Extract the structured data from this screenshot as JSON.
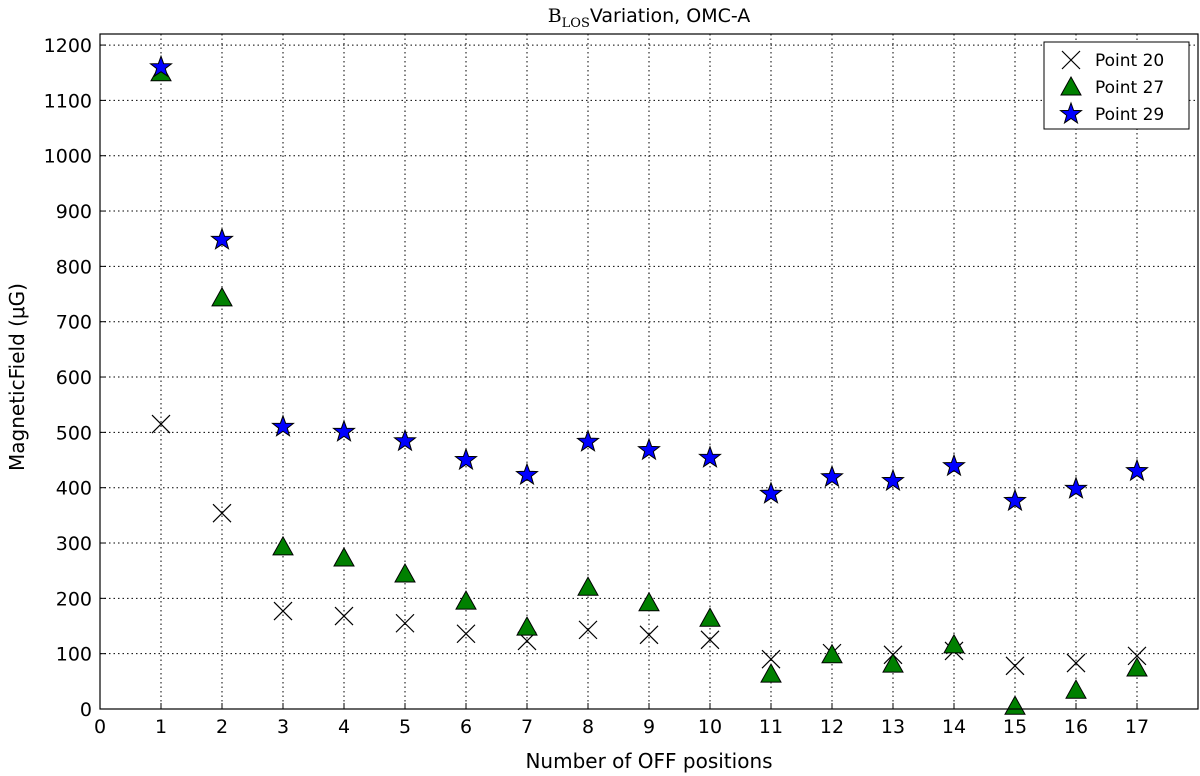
{
  "chart_data": {
    "type": "scatter",
    "title": "B",
    "title_subscript": "LOS",
    "title_rest": "Variation, OMC-A",
    "xlabel": "Number of OFF positions",
    "ylabel": "MagneticField (μG)",
    "xlim": [
      0,
      18
    ],
    "ylim": [
      0,
      1220
    ],
    "xticks": [
      0,
      1,
      2,
      3,
      4,
      5,
      6,
      7,
      8,
      9,
      10,
      11,
      12,
      13,
      14,
      15,
      16,
      17
    ],
    "yticks": [
      0,
      100,
      200,
      300,
      400,
      500,
      600,
      700,
      800,
      900,
      1000,
      1100,
      1200
    ],
    "grid": true,
    "legend_position": "top-right",
    "x": [
      1,
      2,
      3,
      4,
      5,
      6,
      7,
      8,
      9,
      10,
      11,
      12,
      13,
      14,
      15,
      16,
      17
    ],
    "series": [
      {
        "name": "Point 20",
        "marker": "x",
        "color": "#000000",
        "values": [
          515,
          354,
          177,
          168,
          155,
          136,
          123,
          143,
          134,
          125,
          90,
          101,
          98,
          105,
          78,
          83,
          96
        ]
      },
      {
        "name": "Point 27",
        "marker": "triangle",
        "color": "#008000",
        "values": [
          1150,
          743,
          293,
          273,
          244,
          195,
          148,
          220,
          192,
          164,
          63,
          98,
          81,
          116,
          5,
          34,
          74
        ]
      },
      {
        "name": "Point 29",
        "marker": "star",
        "color": "#0000ff",
        "values": [
          1160,
          848,
          510,
          501,
          484,
          450,
          423,
          483,
          468,
          454,
          389,
          419,
          412,
          439,
          376,
          398,
          430
        ]
      }
    ]
  }
}
